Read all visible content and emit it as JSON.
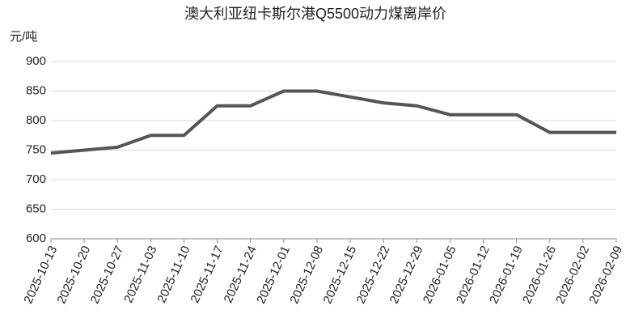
{
  "chart_data": {
    "type": "line",
    "title": "澳大利亚纽卡斯尔港Q5500动力煤离岸价",
    "y_label": "元/吨",
    "categories": [
      "2025-10-13",
      "2025-10-20",
      "2025-10-27",
      "2025-11-03",
      "2025-11-10",
      "2025-11-17",
      "2025-11-24",
      "2025-12-01",
      "2025-12-08",
      "2025-12-15",
      "2025-12-22",
      "2025-12-29",
      "2026-01-05",
      "2026-01-12",
      "2026-01-19",
      "2026-01-26",
      "2026-02-02",
      "2026-02-09"
    ],
    "series": [
      {
        "name": "澳大利亚纽卡斯尔港Q5500动力煤离岸价",
        "color": "#555555",
        "values": [
          745,
          750,
          755,
          775,
          775,
          825,
          825,
          850,
          850,
          840,
          830,
          825,
          810,
          810,
          810,
          780,
          780,
          780
        ]
      }
    ],
    "ylim": [
      600,
      900
    ],
    "yticks": [
      600,
      650,
      700,
      750,
      800,
      850,
      900
    ],
    "grid": true
  }
}
